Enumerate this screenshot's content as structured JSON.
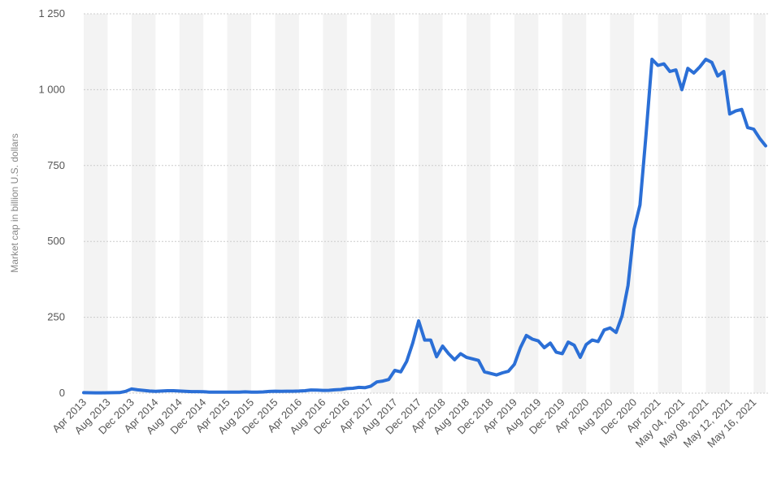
{
  "chart_data": {
    "type": "line",
    "y_label": "Market cap in billion U.S. dollars",
    "categories": [
      "Apr 2013",
      null,
      null,
      null,
      "Aug 2013",
      null,
      null,
      null,
      "Dec 2013",
      null,
      null,
      null,
      "Apr 2014",
      null,
      null,
      null,
      "Aug 2014",
      null,
      null,
      null,
      "Dec 2014",
      null,
      null,
      null,
      "Apr 2015",
      null,
      null,
      null,
      "Aug 2015",
      null,
      null,
      null,
      "Dec 2015",
      null,
      null,
      null,
      "Apr 2016",
      null,
      null,
      null,
      "Aug 2016",
      null,
      null,
      null,
      "Dec 2016",
      null,
      null,
      null,
      "Apr 2017",
      null,
      null,
      null,
      "Aug 2017",
      null,
      null,
      null,
      "Dec 2017",
      null,
      null,
      null,
      "Apr 2018",
      null,
      null,
      null,
      "Aug 2018",
      null,
      null,
      null,
      "Dec 2018",
      null,
      null,
      null,
      "Apr 2019",
      null,
      null,
      null,
      "Aug 2019",
      null,
      null,
      null,
      "Dec 2019",
      null,
      null,
      null,
      "Apr 2020",
      null,
      null,
      null,
      "Aug 2020",
      null,
      null,
      null,
      "Dec 2020",
      null,
      null,
      null,
      "Apr 2021",
      null,
      null,
      null,
      "May 04, 2021",
      null,
      null,
      null,
      "May 08, 2021",
      null,
      null,
      null,
      "May 12, 2021",
      null,
      null,
      null,
      "May 16, 2021",
      null,
      null
    ],
    "values": [
      1.5,
      1.3,
      1.1,
      1.0,
      1.3,
      1.5,
      2,
      6,
      14,
      11,
      9,
      7,
      6,
      7,
      8,
      8,
      7,
      6,
      5,
      5,
      4.5,
      3.5,
      3.5,
      3.5,
      3.3,
      3.3,
      3.6,
      4.2,
      3.6,
      3.6,
      4,
      5.5,
      6.5,
      6,
      6.5,
      6.5,
      7,
      8,
      10.5,
      10,
      9,
      9.5,
      11,
      12,
      15,
      16,
      19,
      18,
      23,
      37,
      40,
      45,
      75,
      70,
      105,
      165,
      238,
      175,
      175,
      120,
      155,
      130,
      110,
      130,
      118,
      113,
      108,
      70,
      65,
      60,
      67,
      72,
      95,
      150,
      190,
      178,
      172,
      150,
      165,
      135,
      130,
      168,
      158,
      118,
      160,
      175,
      170,
      208,
      215,
      200,
      255,
      355,
      540,
      620,
      850,
      1100,
      1080,
      1085,
      1060,
      1065,
      1000,
      1070,
      1055,
      1075,
      1100,
      1090,
      1045,
      1060,
      920,
      930,
      935,
      875,
      870,
      840,
      815
    ],
    "color": "#2b6fd6",
    "ylim": [
      0,
      1250
    ],
    "yticks": [
      0,
      250,
      500,
      750,
      {
        "value": 1000,
        "label": "1 000"
      },
      {
        "value": 1250,
        "label": "1 250"
      }
    ],
    "grid": true
  }
}
